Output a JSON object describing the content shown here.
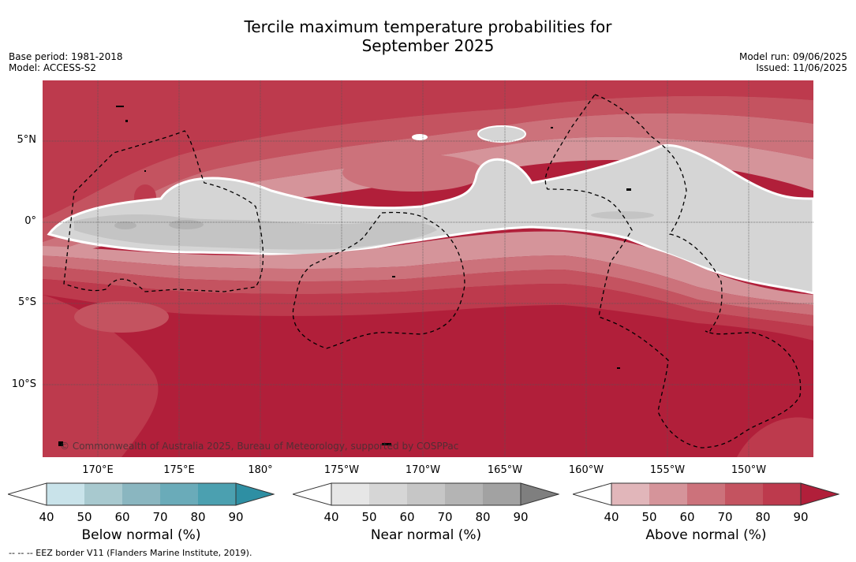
{
  "title": {
    "line1": "Tercile maximum temperature probabilities for",
    "line2": "September 2025"
  },
  "meta": {
    "base_period": "Base period: 1981-2018",
    "model": "Model: ACCESS-S2",
    "model_run": "Model run: 09/06/2025",
    "issued": "Issued: 11/06/2025"
  },
  "map": {
    "lat_labels": [
      "5°N",
      "0°",
      "5°S",
      "10°S"
    ],
    "lon_labels": [
      "170°E",
      "175°E",
      "180°",
      "175°W",
      "170°W",
      "165°W",
      "160°W",
      "155°W",
      "150°W"
    ],
    "copyright": "© Commonwealth of Australia 2025, Bureau of Meteorology, supported by COSPPac",
    "colors": {
      "above_90": "#b11f3a",
      "above_80": "#bd3a4d",
      "above_70": "#c45360",
      "above_60": "#cc727b",
      "above_50": "#d5949a",
      "above_40": "#e1b6ba",
      "near_40": "#e6e6e6",
      "near_50": "#d5d5d5",
      "near_60": "#c4c4c4",
      "near_70": "#b3b3b3"
    }
  },
  "colorbars": [
    {
      "title": "Below normal (%)",
      "ticks": [
        "40",
        "50",
        "60",
        "70",
        "80",
        "90"
      ],
      "colors": [
        "#c9e3ea",
        "#a8c9cf",
        "#8ab6c0",
        "#6aabb9",
        "#4ba0b0",
        "#2e8fa3"
      ]
    },
    {
      "title": "Near normal (%)",
      "ticks": [
        "40",
        "50",
        "60",
        "70",
        "80",
        "90"
      ],
      "colors": [
        "#e6e6e6",
        "#d6d6d6",
        "#c6c6c6",
        "#b4b4b4",
        "#a2a2a2",
        "#7f7f7f"
      ]
    },
    {
      "title": "Above normal (%)",
      "ticks": [
        "40",
        "50",
        "60",
        "70",
        "80",
        "90"
      ],
      "colors": [
        "#e1b6ba",
        "#d5949a",
        "#cc727b",
        "#c45360",
        "#bd3a4d",
        "#b11f3a"
      ]
    }
  ],
  "footer": "-- -- -- EEZ border V11 (Flanders Marine Institute, 2019)."
}
